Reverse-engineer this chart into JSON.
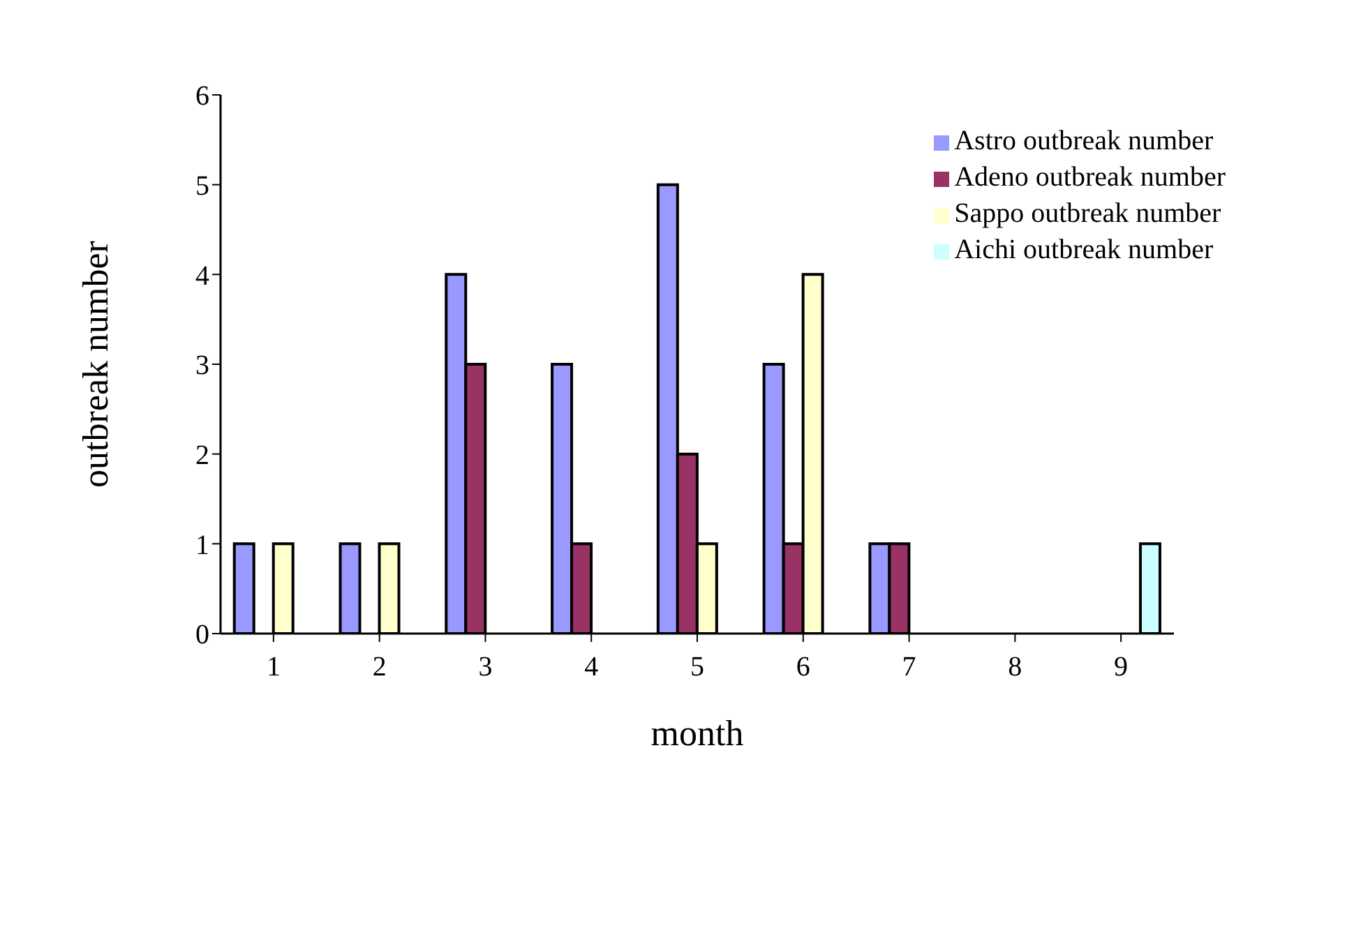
{
  "chart_data": {
    "type": "bar",
    "xlabel": "month",
    "ylabel": "outbreak number",
    "categories": [
      "1",
      "2",
      "3",
      "4",
      "5",
      "6",
      "7",
      "8",
      "9"
    ],
    "series": [
      {
        "name": "Astro outbreak number",
        "color": "#9999ff",
        "values": [
          1,
          1,
          4,
          3,
          5,
          3,
          1,
          0,
          0
        ]
      },
      {
        "name": "Adeno outbreak number",
        "color": "#993366",
        "values": [
          0,
          0,
          3,
          1,
          2,
          1,
          1,
          0,
          0
        ]
      },
      {
        "name": "Sappo outbreak number",
        "color": "#ffffcc",
        "values": [
          1,
          1,
          0,
          0,
          1,
          4,
          0,
          0,
          0
        ]
      },
      {
        "name": "Aichi outbreak number",
        "color": "#ccffff",
        "values": [
          0,
          0,
          0,
          0,
          0,
          0,
          0,
          0,
          1
        ]
      }
    ],
    "ylim": [
      0,
      6
    ],
    "yticks": [
      0,
      1,
      2,
      3,
      4,
      5,
      6
    ],
    "grid": false,
    "legend": "top right"
  }
}
